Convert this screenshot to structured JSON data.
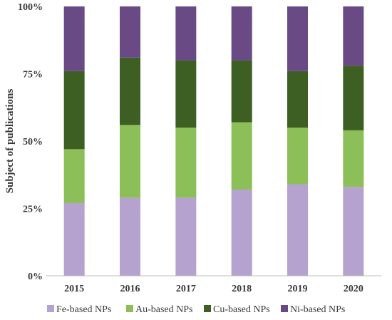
{
  "chart_data": {
    "type": "bar",
    "stacked": true,
    "normalized": true,
    "title": "",
    "xlabel": "",
    "ylabel": "Subject of publications",
    "ylim": [
      0,
      100
    ],
    "yticks": [
      "0%",
      "25%",
      "50%",
      "75%",
      "100%"
    ],
    "ytick_values": [
      0,
      25,
      50,
      75,
      100
    ],
    "categories": [
      "2015",
      "2016",
      "2017",
      "2018",
      "2019",
      "2020"
    ],
    "series": [
      {
        "name": "Fe-based NPs",
        "color": "#b5a2ce",
        "values": [
          27,
          29,
          29,
          32,
          34,
          33
        ]
      },
      {
        "name": "Au-based NPs",
        "color": "#8cbf57",
        "values": [
          20,
          27,
          26,
          25,
          21,
          21
        ]
      },
      {
        "name": "Cu-based NPs",
        "color": "#3e5f23",
        "values": [
          29,
          25,
          25,
          23,
          21,
          24
        ]
      },
      {
        "name": "Ni-based NPs",
        "color": "#6a4a85",
        "values": [
          24,
          19,
          20,
          20,
          24,
          22
        ]
      }
    ],
    "grid": false,
    "legend_position": "bottom"
  }
}
